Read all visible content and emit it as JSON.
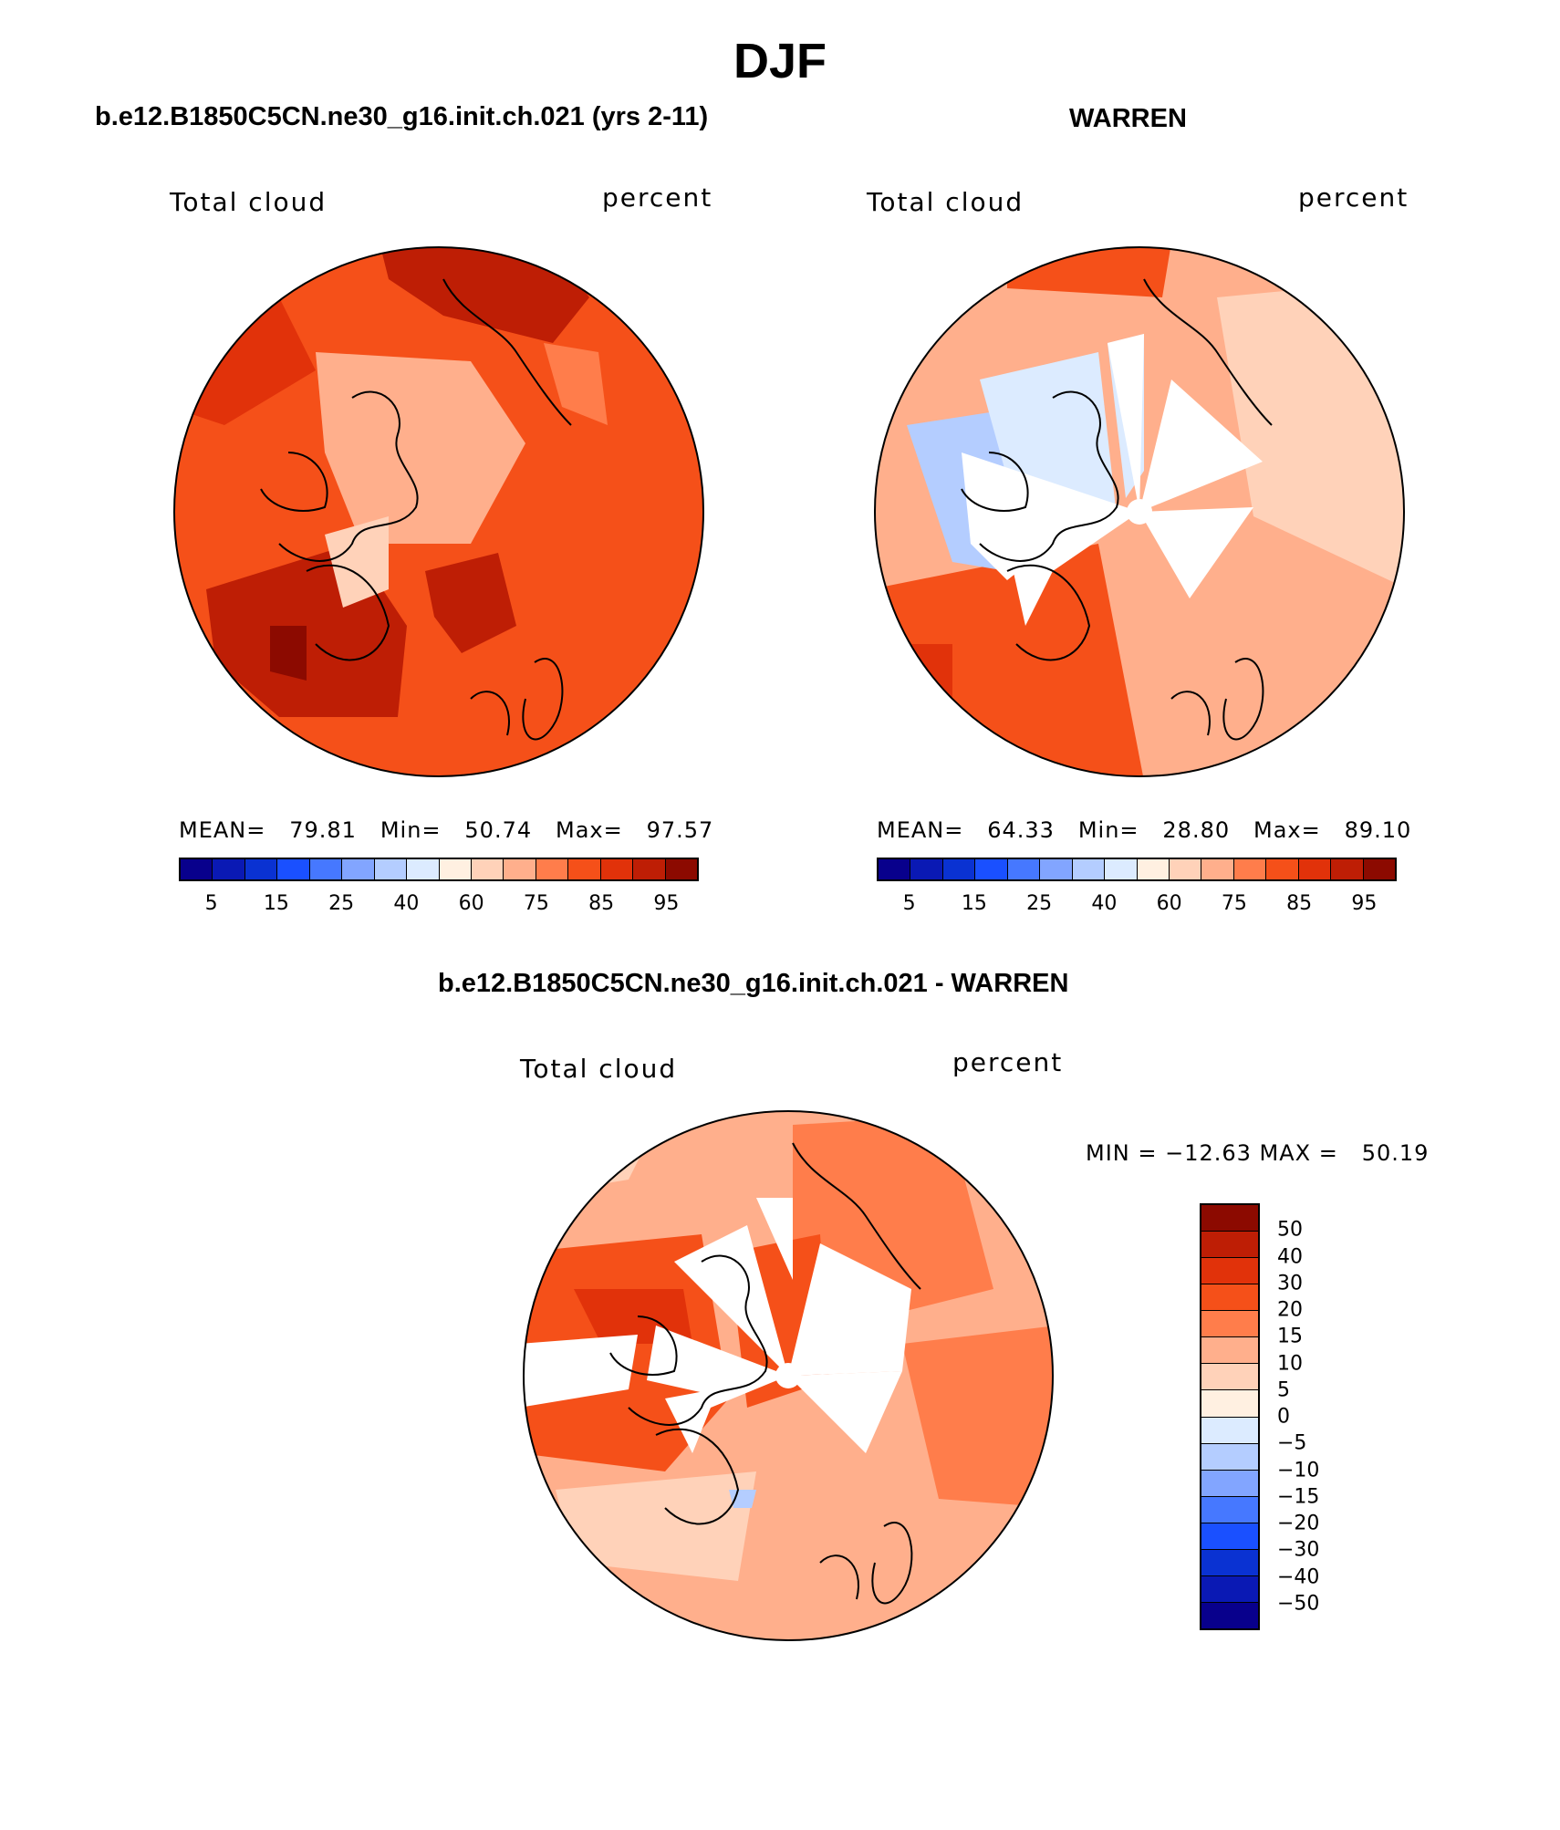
{
  "figure": {
    "season": "DJF"
  },
  "panels": [
    {
      "title": "b.e12.B1850C5CN.ne30_g16.init.ch.021 (yrs 2-11)",
      "variable": "Total cloud",
      "units": "percent",
      "stats": "MEAN=   79.81   Min=   50.74   Max=   97.57",
      "mean": 79.81,
      "min": 50.74,
      "max": 97.57
    },
    {
      "title": "WARREN",
      "variable": "Total cloud",
      "units": "percent",
      "stats": "MEAN=   64.33   Min=   28.80   Max=   89.10",
      "mean": 64.33,
      "min": 28.8,
      "max": 89.1
    }
  ],
  "diff_panel": {
    "title": "b.e12.B1850C5CN.ne30_g16.init.ch.021 - WARREN",
    "variable": "Total cloud",
    "units": "percent",
    "stats": "MIN = −12.63 MAX =   50.19",
    "min": -12.63,
    "max": 50.19
  },
  "abs_colorbar": {
    "colors": [
      "#08008c",
      "#0a19b4",
      "#0a32d2",
      "#1a50ff",
      "#4678ff",
      "#82a5ff",
      "#b4cdff",
      "#dcebff",
      "#fff0e1",
      "#ffd2b9",
      "#ffaf8c",
      "#ff7d4b",
      "#f55019",
      "#e1320a",
      "#be1e05",
      "#8c0a00"
    ],
    "tick_labels": [
      "5",
      "15",
      "25",
      "40",
      "60",
      "75",
      "85",
      "95"
    ]
  },
  "diff_colorbar": {
    "colors": [
      "#8c0a00",
      "#be1e05",
      "#e1320a",
      "#f55019",
      "#ff7d4b",
      "#ffaf8c",
      "#ffd2b9",
      "#fff0e1",
      "#dcebff",
      "#b4cdff",
      "#82a5ff",
      "#4678ff",
      "#1a50ff",
      "#0a32d2",
      "#0a19b4",
      "#08008c"
    ],
    "tick_labels": [
      "50",
      "40",
      "30",
      "20",
      "15",
      "10",
      "5",
      "0",
      "−5",
      "−10",
      "−15",
      "−20",
      "−30",
      "−40",
      "−50"
    ]
  },
  "map_fill": {
    "panel1_base": "#f55019",
    "panel2_base": "#ffaf8c",
    "diff_base": "#ffaf8c",
    "missing": "#ffffff"
  }
}
